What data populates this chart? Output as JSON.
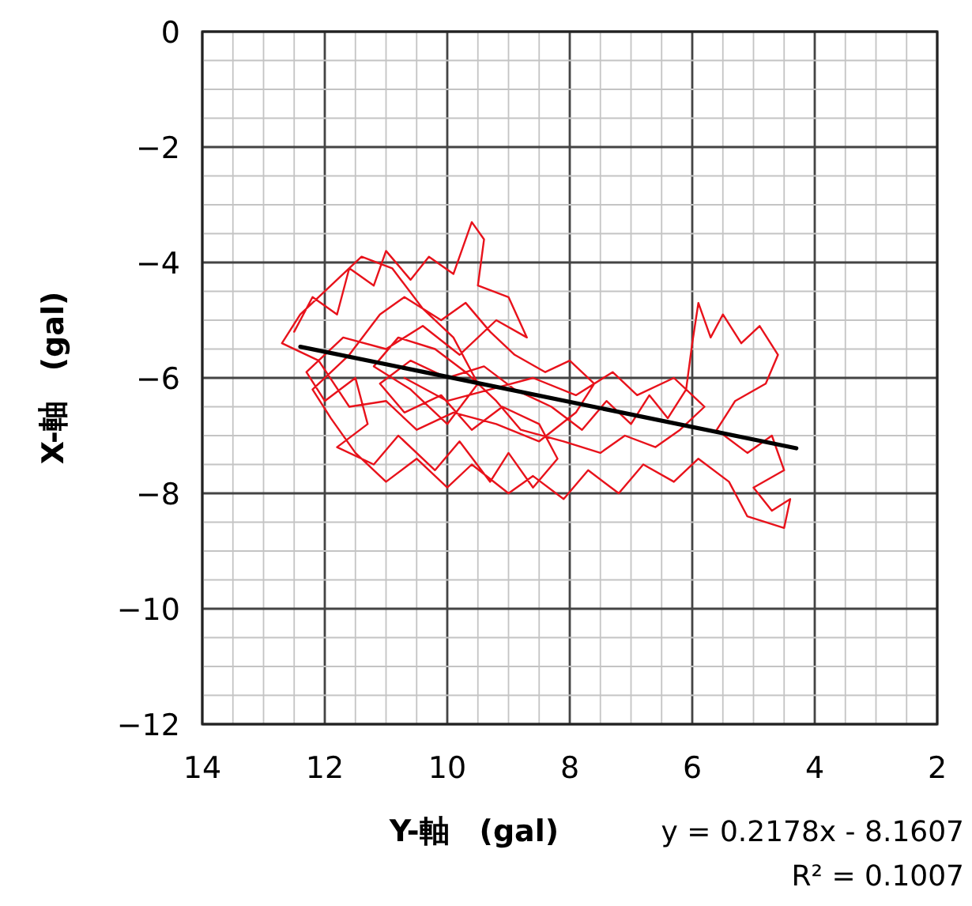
{
  "chart_data": {
    "type": "line",
    "xlabel": "Y-軸　(gal)",
    "ylabel": "X-軸　(gal)",
    "xlim": [
      14,
      2
    ],
    "ylim": [
      -12,
      0
    ],
    "xticks": [
      14,
      {
        "value": 13.5,
        "label": null
      },
      {
        "value": 13,
        "label": null
      },
      {
        "value": 12.5,
        "label": null
      },
      12,
      {
        "value": 11.5,
        "label": null
      },
      {
        "value": 11,
        "label": null
      },
      {
        "value": 10.5,
        "label": null
      },
      10,
      {
        "value": 9.5,
        "label": null
      },
      {
        "value": 9,
        "label": null
      },
      {
        "value": 8.5,
        "label": null
      },
      8,
      {
        "value": 7.5,
        "label": null
      },
      {
        "value": 7,
        "label": null
      },
      {
        "value": 6.5,
        "label": null
      },
      6,
      {
        "value": 5.5,
        "label": null
      },
      {
        "value": 5,
        "label": null
      },
      {
        "value": 4.5,
        "label": null
      },
      4,
      {
        "value": 3.5,
        "label": null
      },
      {
        "value": 3,
        "label": null
      },
      {
        "value": 2.5,
        "label": null
      },
      2
    ],
    "yticks": [
      -12,
      {
        "value": -11.5,
        "label": null
      },
      {
        "value": -11,
        "label": null
      },
      {
        "value": -10.5,
        "label": null
      },
      -10,
      {
        "value": -9.5,
        "label": null
      },
      {
        "value": -9,
        "label": null
      },
      {
        "value": -8.5,
        "label": null
      },
      -8,
      {
        "value": -7.5,
        "label": null
      },
      {
        "value": -7,
        "label": null
      },
      {
        "value": -6.5,
        "label": null
      },
      -6,
      {
        "value": -5.5,
        "label": null
      },
      {
        "value": -5,
        "label": null
      },
      {
        "value": -4.5,
        "label": null
      },
      -4,
      {
        "value": -3.5,
        "label": null
      },
      {
        "value": -3,
        "label": null
      },
      {
        "value": -2.5,
        "label": null
      },
      -2,
      {
        "value": -1.5,
        "label": null
      },
      {
        "value": -1,
        "label": null
      },
      {
        "value": -0.5,
        "label": null
      },
      0
    ],
    "grid": true,
    "marker": "none",
    "series": [
      {
        "color": "#e8121b",
        "x": [
          12.5,
          12.2,
          11.8,
          11.6,
          11.2,
          11.0,
          10.6,
          10.3,
          9.9,
          9.6,
          9.4,
          9.5,
          9.0,
          8.7,
          9.2,
          9.8,
          10.4,
          11.0,
          11.7,
          12.3,
          12.0,
          11.5,
          11.3,
          11.8,
          11.2,
          10.8,
          10.2,
          9.8,
          9.3,
          9.0,
          8.6,
          8.2,
          8.5,
          9.1,
          9.6,
          10.1,
          10.7,
          11.1,
          10.6,
          10.0,
          9.4,
          8.9,
          8.3,
          7.8,
          7.4,
          7.0,
          6.7,
          6.4,
          6.1,
          6.0,
          5.9,
          5.7,
          5.5,
          5.2,
          4.9,
          4.6,
          4.8,
          5.3,
          5.6,
          5.1,
          4.7,
          4.5,
          5.0,
          4.7,
          4.4,
          4.5,
          5.1,
          5.4,
          5.9,
          6.3,
          6.8,
          7.2,
          7.7,
          8.1,
          8.6,
          9.0,
          9.6,
          10.0,
          10.5,
          11.0,
          11.5,
          11.9,
          12.2,
          11.6,
          11.1,
          10.7,
          10.1,
          9.7,
          9.3,
          8.9,
          8.4,
          8.0,
          7.6,
          7.9,
          8.5,
          9.2,
          9.9,
          10.5,
          11.0,
          11.6,
          12.1,
          12.7,
          12.4,
          11.9,
          11.4,
          10.9,
          10.4,
          9.9,
          9.5,
          10.0,
          10.6,
          11.2,
          10.8,
          10.2,
          9.7,
          9.2,
          8.8,
          8.1,
          7.5,
          7.1,
          6.6,
          6.2,
          5.8,
          6.3,
          6.9,
          7.3,
          7.9,
          8.6,
          9.3,
          10.0,
          10.7
        ],
        "values": [
          -5.2,
          -4.6,
          -4.9,
          -4.1,
          -4.4,
          -3.8,
          -4.3,
          -3.9,
          -4.2,
          -3.3,
          -3.6,
          -4.4,
          -4.6,
          -5.3,
          -5.0,
          -5.6,
          -5.1,
          -5.5,
          -5.3,
          -5.9,
          -6.4,
          -6.0,
          -6.8,
          -7.2,
          -7.5,
          -7.0,
          -7.6,
          -7.1,
          -7.8,
          -7.3,
          -7.9,
          -7.4,
          -6.8,
          -6.5,
          -6.9,
          -6.3,
          -6.6,
          -6.1,
          -5.7,
          -6.0,
          -5.8,
          -6.2,
          -6.5,
          -6.9,
          -6.4,
          -6.8,
          -6.3,
          -6.7,
          -6.2,
          -5.4,
          -4.7,
          -5.3,
          -4.9,
          -5.4,
          -5.1,
          -5.6,
          -6.1,
          -6.4,
          -6.9,
          -7.3,
          -7.0,
          -7.6,
          -7.9,
          -8.3,
          -8.1,
          -8.6,
          -8.4,
          -7.8,
          -7.4,
          -7.8,
          -7.5,
          -8.0,
          -7.6,
          -8.1,
          -7.7,
          -8.0,
          -7.5,
          -7.9,
          -7.4,
          -7.8,
          -7.3,
          -6.7,
          -6.2,
          -5.6,
          -4.9,
          -4.6,
          -5.0,
          -4.7,
          -5.2,
          -5.6,
          -5.9,
          -5.7,
          -6.1,
          -6.6,
          -7.1,
          -6.8,
          -6.6,
          -6.9,
          -6.4,
          -6.5,
          -5.7,
          -5.4,
          -4.9,
          -4.4,
          -3.9,
          -4.1,
          -4.8,
          -5.3,
          -6.1,
          -6.8,
          -6.2,
          -5.8,
          -5.3,
          -5.5,
          -5.9,
          -6.4,
          -6.9,
          -7.1,
          -7.3,
          -7.0,
          -7.2,
          -6.9,
          -6.5,
          -6.0,
          -6.3,
          -5.9,
          -6.3,
          -6.0,
          -6.2,
          -6.4,
          -6.0
        ]
      },
      {
        "color": "#000000",
        "x": [
          12.4,
          4.3
        ],
        "values": [
          -5.46,
          -7.22
        ]
      }
    ],
    "annotations": [
      "y = 0.2178x - 8.1607",
      "R² = 0.1007"
    ]
  }
}
